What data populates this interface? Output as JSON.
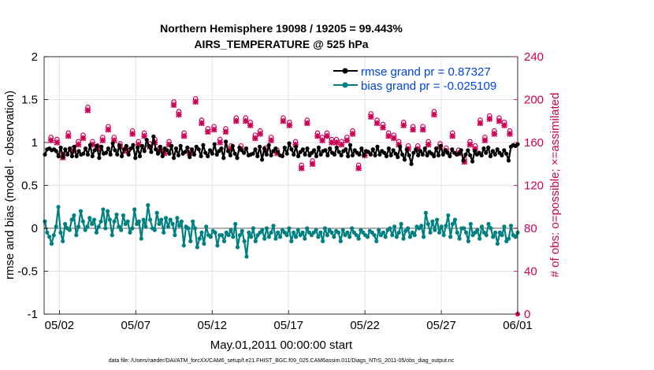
{
  "chart_data": {
    "type": "line",
    "title": "Northern Hemisphere 19098 / 19205 = 99.443%",
    "subtitle": "AIRS_TEMPERATURE @ 525 hPa",
    "xlabel": "May.01,2011 00:00:00 start",
    "ylabel": "rmse and bias (model - observation)",
    "ylabel_right": "# of obs: o=possible; ×=assimilated",
    "footnote": "data file: /Users/raeder/DAI/ATM_forcXX/CAM6_setup/f.e21.FHIST_BGC.f09_025.CAM6assim.011/Diags_NTrS_2011-05/obs_diag_output.nc",
    "xlim": [
      0,
      31
    ],
    "ylim": [
      -1,
      2
    ],
    "ylim_right": [
      0,
      240
    ],
    "x_ticks": [
      {
        "x": 1,
        "label": "05/02"
      },
      {
        "x": 6,
        "label": "05/07"
      },
      {
        "x": 11,
        "label": "05/12"
      },
      {
        "x": 16,
        "label": "05/17"
      },
      {
        "x": 21,
        "label": "05/22"
      },
      {
        "x": 26,
        "label": "05/27"
      },
      {
        "x": 31,
        "label": "06/01"
      }
    ],
    "y_ticks": [
      {
        "v": -1,
        "label": "-1"
      },
      {
        "v": -0.5,
        "label": "-0.5"
      },
      {
        "v": 0,
        "label": "0"
      },
      {
        "v": 0.5,
        "label": "0.5"
      },
      {
        "v": 1,
        "label": "1"
      },
      {
        "v": 1.5,
        "label": "1.5"
      },
      {
        "v": 2,
        "label": "2"
      }
    ],
    "y_ticks_right": [
      {
        "v": 0,
        "label": "0"
      },
      {
        "v": 40,
        "label": "40"
      },
      {
        "v": 80,
        "label": "80"
      },
      {
        "v": 120,
        "label": "120"
      },
      {
        "v": 160,
        "label": "160"
      },
      {
        "v": 200,
        "label": "200"
      },
      {
        "v": 240,
        "label": "240"
      }
    ],
    "grid": true,
    "legend_position": "top-right",
    "series": [
      {
        "name": "rmse grand pr = 0.87327",
        "color": "#000000",
        "axis": "left",
        "values": [
          0.86,
          0.92,
          0.93,
          0.91,
          0.92,
          0.9,
          0.84,
          0.94,
          0.83,
          0.92,
          0.86,
          0.93,
          0.84,
          0.95,
          0.84,
          0.9,
          0.86,
          0.87,
          0.93,
          0.86,
          0.97,
          0.84,
          0.91,
          0.96,
          0.82,
          0.95,
          0.87,
          0.88,
          0.93,
          0.86,
          0.99,
          0.91,
          0.86,
          0.97,
          0.84,
          0.92,
          0.96,
          0.86,
          0.93,
          0.97,
          0.82,
          0.94,
          0.84,
          0.96,
          0.9,
          1.03,
          0.96,
          0.89,
          1.07,
          0.92,
          0.87,
          0.95,
          0.84,
          0.93,
          0.91,
          0.87,
          0.96,
          0.82,
          0.93,
          0.85,
          0.96,
          0.87,
          0.89,
          0.94,
          0.83,
          0.92,
          0.86,
          0.95,
          0.92,
          0.84,
          0.97,
          0.88,
          0.84,
          0.91,
          0.87,
          0.98,
          0.86,
          0.9,
          0.93,
          0.82,
          1.01,
          0.9,
          0.85,
          0.96,
          0.87,
          0.82,
          0.94,
          0.91,
          0.88,
          0.93,
          0.85,
          0.86,
          0.87,
          0.92,
          0.84,
          0.95,
          0.8,
          0.93,
          0.86,
          0.97,
          0.85,
          0.9,
          0.93,
          0.89,
          0.85,
          0.84,
          0.94,
          0.87,
          0.99,
          0.92,
          0.86,
          0.95,
          0.84,
          0.89,
          0.92,
          0.86,
          0.93,
          0.85,
          0.88,
          0.91,
          0.84,
          0.94,
          0.86,
          0.9,
          0.91,
          0.85,
          0.93,
          0.88,
          0.86,
          0.94,
          0.89,
          0.85,
          0.9,
          0.92,
          0.84,
          0.97,
          0.85,
          0.91,
          0.88,
          0.86,
          0.93,
          0.85,
          0.9,
          0.89,
          0.86,
          0.92,
          0.85,
          0.95,
          0.86,
          0.9,
          0.88,
          0.84,
          0.93,
          0.85,
          0.91,
          0.87,
          0.83,
          0.95,
          0.86,
          0.8,
          0.92,
          0.85,
          0.75,
          0.88,
          0.92,
          0.85,
          0.9,
          0.86,
          0.93,
          0.85,
          0.89,
          0.87,
          0.84,
          0.93,
          0.85,
          0.96,
          0.86,
          0.91,
          0.88,
          0.84,
          0.92,
          0.88,
          0.86,
          0.87,
          0.91,
          0.79,
          0.86,
          0.91,
          0.85,
          0.78,
          0.9,
          0.86,
          0.88,
          0.85,
          0.93,
          0.88,
          0.94,
          0.84,
          0.9,
          0.86,
          0.92,
          0.88,
          0.85,
          0.91,
          0.87,
          0.79,
          0.95,
          0.97,
          0.96,
          0.98
        ]
      },
      {
        "name": "bias grand pr = -0.025109",
        "color": "#008080",
        "axis": "left",
        "values": [
          0.08,
          -0.05,
          -0.1,
          -0.18,
          -0.08,
          0.02,
          0.25,
          -0.05,
          -0.15,
          0.05,
          0.0,
          -0.02,
          0.1,
          0.15,
          -0.08,
          0.02,
          0.2,
          0.08,
          -0.02,
          0.02,
          0.12,
          0.05,
          0.1,
          -0.05,
          0.02,
          0.08,
          0.22,
          0.0,
          0.2,
          0.1,
          -0.08,
          0.08,
          0.16,
          0.02,
          -0.02,
          0.15,
          0.05,
          0.08,
          -0.05,
          0.0,
          0.22,
          0.05,
          0.08,
          -0.12,
          0.1,
          0.02,
          0.27,
          0.1,
          0.0,
          -0.02,
          0.18,
          0.05,
          0.1,
          -0.05,
          0.12,
          0.02,
          0.1,
          0.05,
          -0.08,
          0.12,
          0.03,
          0.08,
          -0.2,
          0.02,
          0.0,
          -0.15,
          0.08,
          0.0,
          -0.22,
          -0.12,
          -0.05,
          -0.18,
          0.02,
          -0.08,
          -0.1,
          -0.03,
          -0.05,
          -0.2,
          -0.08,
          -0.08,
          -0.15,
          -0.05,
          -0.08,
          -0.02,
          -0.1,
          0.05,
          -0.22,
          -0.08,
          -0.03,
          -0.15,
          -0.33,
          -0.05,
          -0.1,
          0.0,
          -0.15,
          -0.08,
          -0.05,
          -0.02,
          -0.12,
          0.0,
          -0.1,
          -0.05,
          0.03,
          -0.12,
          -0.05,
          -0.1,
          -0.02,
          -0.05,
          -0.08,
          0.0,
          -0.15,
          -0.05,
          -0.1,
          -0.02,
          -0.08,
          -0.05,
          -0.12,
          0.0,
          -0.05,
          -0.08,
          -0.05,
          -0.02,
          -0.1,
          -0.05,
          -0.15,
          0.0,
          -0.08,
          -0.02,
          -0.05,
          -0.1,
          -0.03,
          -0.05,
          -0.15,
          -0.02,
          -0.08,
          -0.05,
          -0.1,
          0.0,
          -0.05,
          -0.08,
          -0.12,
          -0.02,
          -0.05,
          -0.08,
          -0.1,
          -0.03,
          -0.05,
          -0.08,
          -0.15,
          -0.02,
          -0.08,
          -0.05,
          -0.1,
          -0.02,
          0.0,
          -0.08,
          0.02,
          -0.1,
          -0.05,
          0.05,
          -0.12,
          -0.03,
          0.0,
          -0.1,
          -0.05,
          -0.08,
          0.02,
          0.0,
          0.03,
          -0.1,
          0.18,
          0.05,
          -0.05,
          0.08,
          -0.02,
          0.1,
          -0.05,
          0.02,
          -0.08,
          0.03,
          0.15,
          -0.1,
          0.05,
          0.1,
          -0.05,
          -0.12,
          0.0,
          0.0,
          -0.05,
          -0.15,
          0.05,
          -0.08,
          -0.05,
          -0.02,
          -0.12,
          0.02,
          -0.05,
          -0.08,
          0.05,
          0.0,
          -0.1,
          -0.05,
          -0.18,
          -0.05,
          -0.08,
          0.02,
          -0.15,
          -0.12,
          0.03,
          -0.08,
          -0.1,
          -0.05
        ]
      }
    ],
    "obs_possible": [
      162,
      160,
      146,
      166,
      152,
      158,
      164,
      190,
      158,
      154,
      162,
      172,
      162,
      156,
      152,
      168,
      158,
      166,
      156,
      160,
      152,
      150,
      158,
      195,
      186,
      166,
      150,
      198,
      178,
      170,
      172,
      160,
      170,
      154,
      180,
      154,
      180,
      176,
      164,
      168,
      152,
      162,
      150,
      180,
      176,
      158,
      136,
      178,
      140,
      166,
      162,
      166,
      160,
      160,
      158,
      162,
      168,
      136,
      148,
      184,
      178,
      174,
      166,
      164,
      158,
      176,
      154,
      172,
      154,
      172,
      158,
      186,
      156,
      152,
      166,
      150,
      142,
      158,
      154,
      178,
      162,
      182,
      168,
      180,
      176,
      168
    ],
    "obs_assimilated": [
      162,
      160,
      146,
      166,
      152,
      158,
      164,
      190,
      158,
      154,
      162,
      172,
      162,
      156,
      152,
      168,
      158,
      166,
      156,
      160,
      152,
      150,
      158,
      195,
      186,
      166,
      150,
      198,
      178,
      170,
      172,
      160,
      170,
      154,
      180,
      154,
      180,
      176,
      164,
      168,
      152,
      162,
      150,
      180,
      176,
      158,
      136,
      178,
      140,
      166,
      162,
      166,
      160,
      160,
      158,
      162,
      168,
      136,
      148,
      184,
      178,
      174,
      166,
      164,
      158,
      176,
      154,
      172,
      154,
      172,
      158,
      186,
      156,
      152,
      166,
      150,
      142,
      158,
      154,
      178,
      162,
      182,
      168,
      180,
      176,
      168
    ]
  },
  "colors": {
    "rmse": "#000000",
    "bias": "#008080",
    "obs": "#cc0055",
    "legend_text": "#0044dd",
    "zero_line": "#b0b0b0",
    "grid": "#e3e3e3"
  }
}
